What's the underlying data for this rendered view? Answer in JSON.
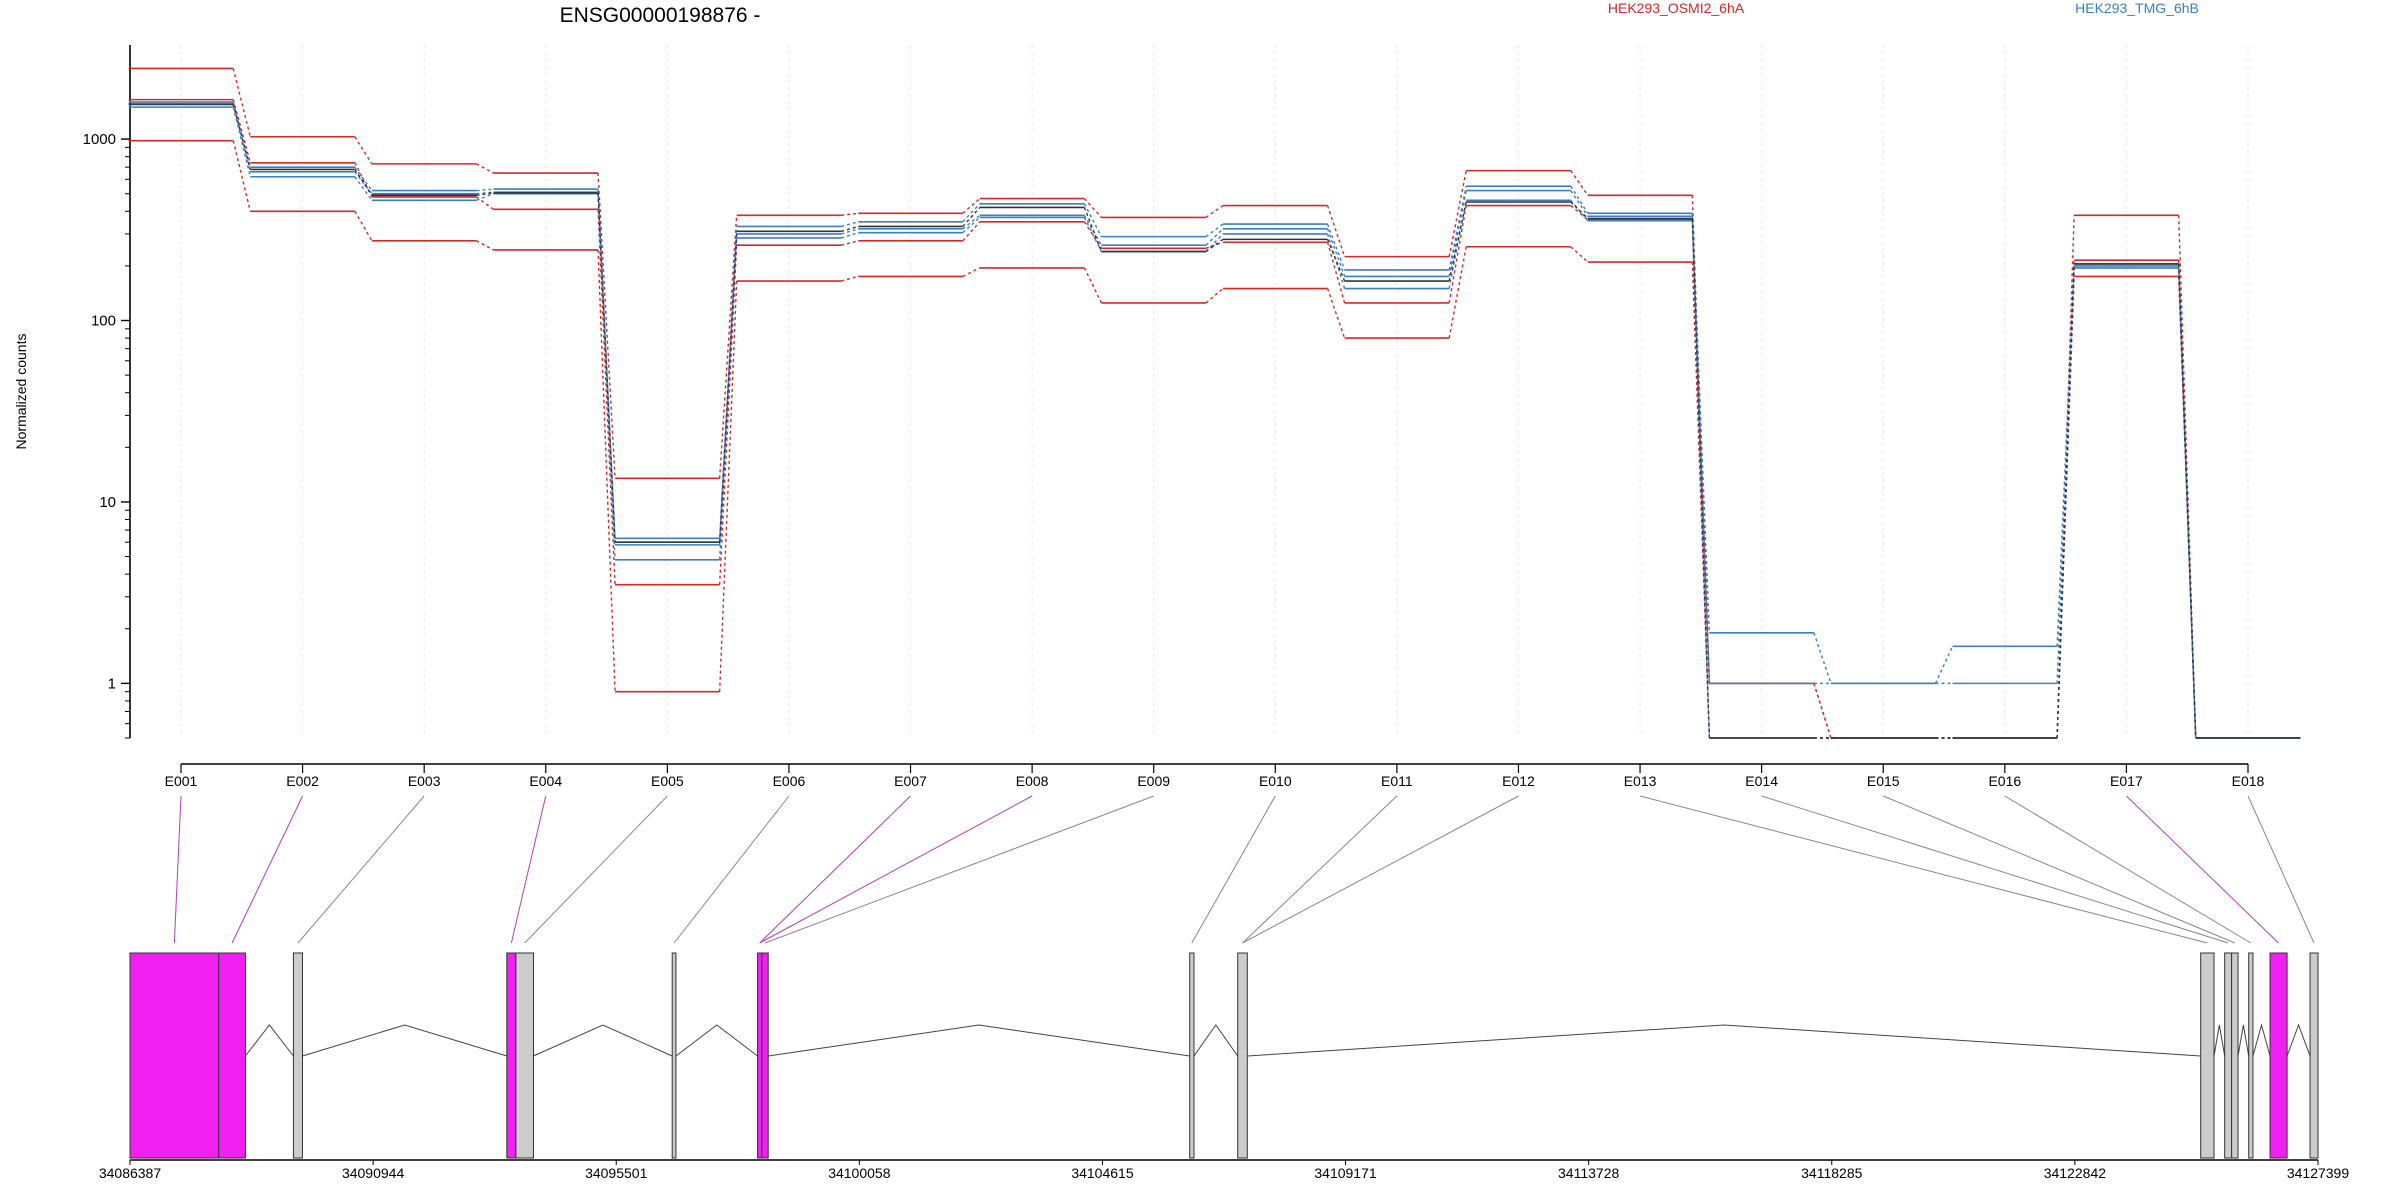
{
  "chart_data": {
    "type": "line",
    "title": "ENSG00000198876 -",
    "ylabel": "Normalized counts",
    "xlabel": "",
    "yscale": "log",
    "ylim": [
      0.5,
      3300
    ],
    "yticks": [
      1,
      10,
      100,
      1000
    ],
    "ytick_labels": [
      "1",
      "10",
      "100",
      "1000"
    ],
    "grid": "faint vertical lines at exon centers",
    "legend": [
      {
        "name": "HEK293_OSMI2_6hA",
        "color": "#d62728"
      },
      {
        "name": "HEK293_TMG_6hB",
        "color": "#3a7fc1"
      }
    ],
    "categories": [
      "E001",
      "E002",
      "E003",
      "E004",
      "E005",
      "E006",
      "E007",
      "E008",
      "E009",
      "E010",
      "E011",
      "E012",
      "E013",
      "E014",
      "E015",
      "E016",
      "E017",
      "E018"
    ],
    "series": [
      {
        "group": "HEK293_OSMI2_6hA",
        "color": "#d62728",
        "values": [
          2450,
          1030,
          730,
          650,
          13.5,
          380,
          390,
          470,
          370,
          430,
          225,
          670,
          490,
          1.0,
          0.5,
          0.5,
          380,
          0.5
        ]
      },
      {
        "group": "HEK293_OSMI2_6hA",
        "color": "#d62728",
        "values": [
          1650,
          740,
          480,
          410,
          3.5,
          260,
          275,
          350,
          250,
          270,
          125,
          430,
          360,
          1.0,
          0.5,
          0.5,
          215,
          0.5
        ]
      },
      {
        "group": "HEK293_OSMI2_6hA",
        "color": "#d62728",
        "values": [
          980,
          400,
          275,
          245,
          0.9,
          165,
          175,
          195,
          125,
          150,
          80,
          255,
          210,
          0.5,
          0.5,
          0.5,
          175,
          0.5
        ]
      },
      {
        "group": "HEK293_TMG_6hB",
        "color": "#3a7fc1",
        "values": [
          1550,
          700,
          520,
          530,
          6.3,
          330,
          350,
          440,
          290,
          340,
          190,
          550,
          390,
          1.9,
          1.0,
          1.6,
          205,
          0.5
        ]
      },
      {
        "group": "HEK293_TMG_6hB",
        "color": "#3a7fc1",
        "values": [
          1600,
          660,
          500,
          510,
          5.8,
          300,
          320,
          380,
          260,
          320,
          175,
          520,
          375,
          1.0,
          1.0,
          1.0,
          200,
          0.5
        ]
      },
      {
        "group": "HEK293_TMG_6hB",
        "color": "#3a7fc1",
        "values": [
          1500,
          620,
          460,
          500,
          4.8,
          285,
          305,
          370,
          240,
          300,
          150,
          460,
          355,
          0.5,
          0.5,
          0.5,
          195,
          0.5
        ]
      },
      {
        "group": "mean",
        "color": "#333333",
        "values": [
          1560,
          680,
          490,
          505,
          6.0,
          310,
          330,
          420,
          240,
          280,
          165,
          450,
          365,
          0.5,
          0.5,
          0.5,
          205,
          0.5
        ]
      }
    ],
    "gene_axis": {
      "range": [
        34086387,
        34127399
      ],
      "ticks": [
        34086387,
        34090944,
        34095501,
        34100058,
        34104615,
        34109171,
        34113728,
        34118285,
        34122842,
        34127399
      ],
      "tick_labels": [
        "34086387",
        "34090944",
        "34095501",
        "34100058",
        "34104615",
        "34109171",
        "34113728",
        "34118285",
        "34122842",
        "34127399"
      ]
    },
    "exons": [
      {
        "id": "E001",
        "start": 34086387,
        "end": 34088050,
        "highlight": true
      },
      {
        "id": "E002",
        "start": 34088050,
        "end": 34088550,
        "highlight": true
      },
      {
        "id": "E003",
        "start": 34089450,
        "end": 34089620,
        "highlight": false
      },
      {
        "id": "E004",
        "start": 34093450,
        "end": 34093620,
        "highlight": true
      },
      {
        "id": "E005",
        "start": 34093620,
        "end": 34093950,
        "highlight": false
      },
      {
        "id": "E006",
        "start": 34096550,
        "end": 34096620,
        "highlight": false
      },
      {
        "id": "E007",
        "start": 34098150,
        "end": 34098230,
        "highlight": true
      },
      {
        "id": "E008",
        "start": 34098230,
        "end": 34098350,
        "highlight": true
      },
      {
        "id": "E009",
        "start": 34106250,
        "end": 34106330,
        "highlight": false
      },
      {
        "id": "E010",
        "start": 34107150,
        "end": 34107330,
        "highlight": false
      },
      {
        "id": "E011",
        "start": 34125200,
        "end": 34125450,
        "highlight": false
      },
      {
        "id": "E012",
        "start": 34125650,
        "end": 34125780,
        "highlight": false
      },
      {
        "id": "E013",
        "start": 34125780,
        "end": 34125900,
        "highlight": false
      },
      {
        "id": "E014",
        "start": 34126100,
        "end": 34126180,
        "highlight": false
      },
      {
        "id": "E015",
        "start": 34126500,
        "end": 34126820,
        "highlight": true
      },
      {
        "id": "E016",
        "start": 34127250,
        "end": 34127399,
        "highlight": false
      }
    ],
    "connectors": [
      {
        "label": "E001",
        "exon": "E001",
        "highlight": true
      },
      {
        "label": "E002",
        "exon": "E002",
        "highlight": true
      },
      {
        "label": "E003",
        "exon": "E003",
        "highlight": false
      },
      {
        "label": "E004",
        "exon": "E004",
        "highlight": true
      },
      {
        "label": "E005",
        "exon": "E005",
        "highlight": false
      },
      {
        "label": "E006",
        "exon": "E006",
        "highlight": false
      },
      {
        "label": "E007",
        "exon": "E007",
        "highlight": true
      },
      {
        "label": "E008",
        "exon": "E007",
        "highlight": true
      },
      {
        "label": "E009",
        "exon": "E008",
        "highlight": false
      },
      {
        "label": "E010",
        "exon": "E009",
        "highlight": false
      },
      {
        "label": "E011",
        "exon": "E010",
        "highlight": false
      },
      {
        "label": "E012",
        "exon": "E010",
        "highlight": false
      },
      {
        "label": "E013",
        "exon": "E011",
        "highlight": false
      },
      {
        "label": "E014",
        "exon": "E012",
        "highlight": false
      },
      {
        "label": "E015",
        "exon": "E013",
        "highlight": false
      },
      {
        "label": "E016",
        "exon": "E014",
        "highlight": false
      },
      {
        "label": "E017",
        "exon": "E015",
        "highlight": true
      },
      {
        "label": "E018",
        "exon": "E016",
        "highlight": false
      }
    ],
    "colors": {
      "exon_highlight": "#f020f0",
      "exon_plain": "#cccccc",
      "exon_outline": "#333333",
      "connector_plain": "#888888",
      "connector_highlight": "#b040b8",
      "grid": "#e6e6ee"
    }
  }
}
